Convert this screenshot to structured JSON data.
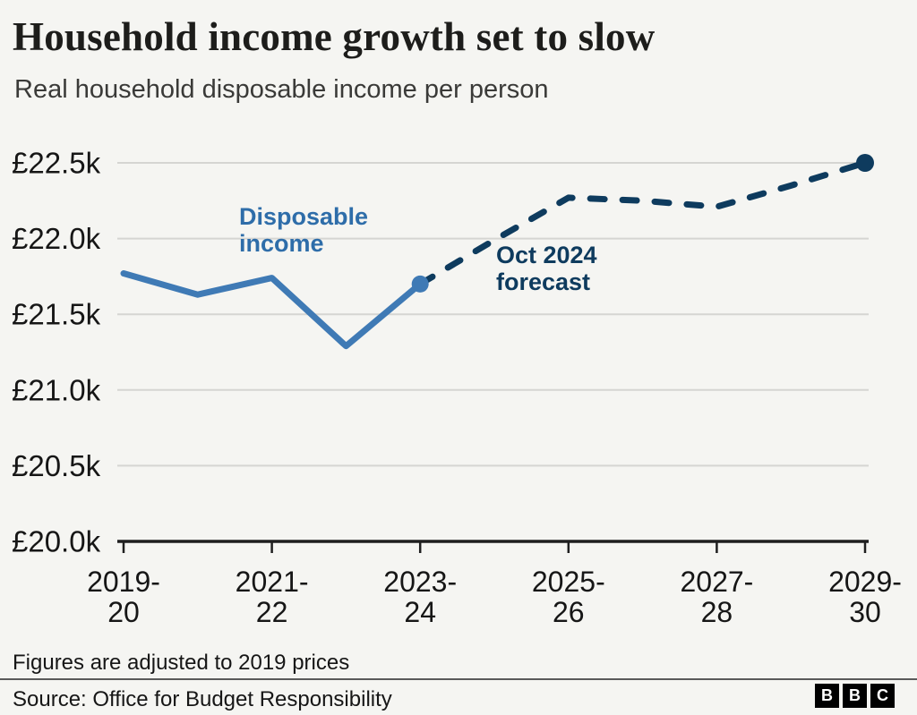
{
  "colors": {
    "background": "#f5f5f2",
    "grid": "#d5d5d2",
    "axis_line": "#1f1f1f",
    "tick_text": "#161616"
  },
  "chart_data": {
    "type": "line",
    "title": "Household income growth set to slow",
    "subtitle": "Real household disposable income per person",
    "xlabel": "",
    "ylabel": "",
    "ylim": [
      20.0,
      22.5
    ],
    "grid": true,
    "legend": "none",
    "categories": [
      "2019-20",
      "2020-21",
      "2021-22",
      "2022-23",
      "2023-24",
      "2024-25",
      "2025-26",
      "2026-27",
      "2027-28",
      "2028-29",
      "2029-30"
    ],
    "series": [
      {
        "name": "Disposable income",
        "style": "solid",
        "color": "#3f7ab5",
        "marker": "last",
        "values": [
          21.77,
          21.63,
          21.74,
          21.29,
          21.7,
          null,
          null,
          null,
          null,
          null,
          null
        ]
      },
      {
        "name": "Oct 2024 forecast",
        "style": "dashed",
        "color": "#0e3b5e",
        "marker": "last",
        "values": [
          null,
          null,
          null,
          null,
          21.7,
          21.99,
          22.27,
          22.25,
          22.21,
          22.35,
          22.5
        ]
      }
    ],
    "y_ticks": [
      {
        "value": 22.5,
        "label": "£22.5k"
      },
      {
        "value": 22.0,
        "label": "£22.0k"
      },
      {
        "value": 21.5,
        "label": "£21.5k"
      },
      {
        "value": 21.0,
        "label": "£21.0k"
      },
      {
        "value": 20.5,
        "label": "£20.5k"
      },
      {
        "value": 20.0,
        "label": "£20.0k"
      }
    ],
    "x_ticks": [
      {
        "index": 0,
        "lines": [
          "2019-",
          "20"
        ]
      },
      {
        "index": 2,
        "lines": [
          "2021-",
          "22"
        ]
      },
      {
        "index": 4,
        "lines": [
          "2023-",
          "24"
        ]
      },
      {
        "index": 6,
        "lines": [
          "2025-",
          "26"
        ]
      },
      {
        "index": 8,
        "lines": [
          "2027-",
          "28"
        ]
      },
      {
        "index": 10,
        "lines": [
          "2029-",
          "30"
        ]
      }
    ],
    "annotations": [
      {
        "text": "Disposable income",
        "color": "#2e6da9"
      },
      {
        "text": "Oct 2024 forecast",
        "color": "#0e3b5e"
      }
    ]
  },
  "footer": {
    "note": "Figures are adjusted to 2019 prices",
    "source": "Source: Office for Budget Responsibility",
    "logo_letters": [
      "B",
      "B",
      "C"
    ]
  }
}
